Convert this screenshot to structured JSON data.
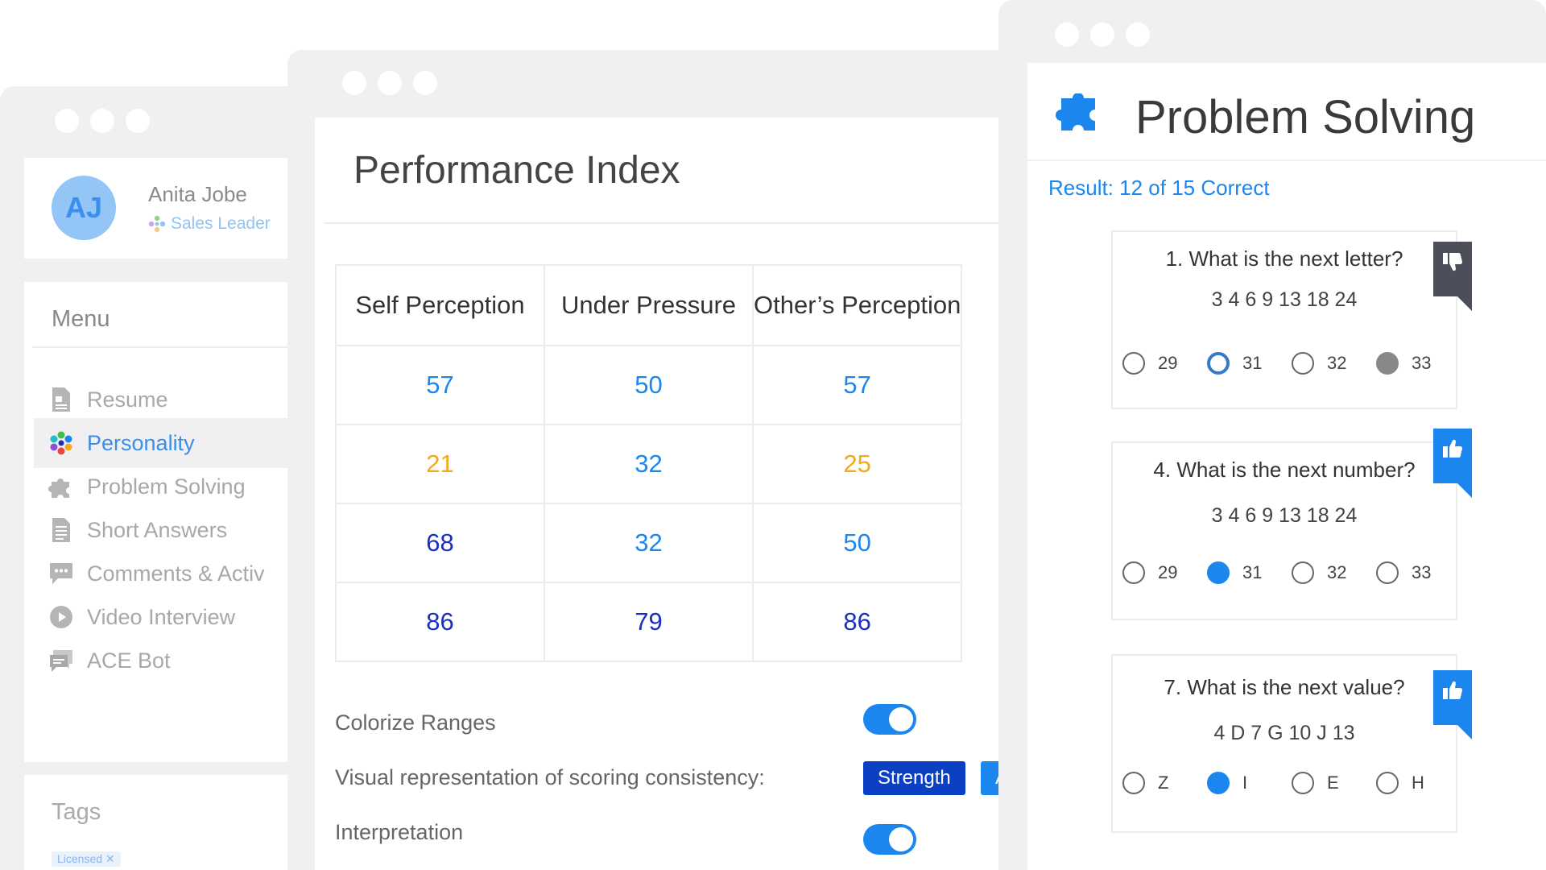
{
  "sidebar": {
    "profile": {
      "initials": "AJ",
      "name": "Anita Jobe",
      "role": "Sales Leader"
    },
    "menu": {
      "title": "Menu",
      "items": [
        {
          "label": "Resume",
          "icon": "document-icon"
        },
        {
          "label": "Personality",
          "icon": "flower-icon",
          "active": true
        },
        {
          "label": "Problem Solving",
          "icon": "puzzle-icon"
        },
        {
          "label": "Short Answers",
          "icon": "text-lines-icon"
        },
        {
          "label": "Comments & Activ",
          "icon": "chat-icon"
        },
        {
          "label": "Video Interview",
          "icon": "play-icon"
        },
        {
          "label": "ACE Bot",
          "icon": "bot-chat-icon"
        }
      ]
    },
    "tags": {
      "title": "Tags",
      "chip": "Licensed"
    }
  },
  "performance": {
    "title": "Performance Index",
    "headers": [
      "Self Perception",
      "Under Pressure",
      "Other’s Perception"
    ],
    "rows": [
      [
        {
          "v": "57",
          "c": "#1a86ee"
        },
        {
          "v": "50",
          "c": "#1a86ee"
        },
        {
          "v": "57",
          "c": "#1a86ee"
        }
      ],
      [
        {
          "v": "21",
          "c": "#f5a81c"
        },
        {
          "v": "32",
          "c": "#1a86ee"
        },
        {
          "v": "25",
          "c": "#f5a81c"
        }
      ],
      [
        {
          "v": "68",
          "c": "#1a2fbf"
        },
        {
          "v": "32",
          "c": "#1a86ee"
        },
        {
          "v": "50",
          "c": "#1a86ee"
        }
      ],
      [
        {
          "v": "86",
          "c": "#1a2fbf"
        },
        {
          "v": "79",
          "c": "#1a2fbf"
        },
        {
          "v": "86",
          "c": "#1a2fbf"
        }
      ]
    ],
    "colorize_label": "Colorize Ranges",
    "visual_label": "Visual representation of scoring consistency:",
    "chip_strength": "Strength",
    "chip_area": "Are",
    "interpretation_label": "Interpretation"
  },
  "problem_solving": {
    "title": "Problem Solving",
    "result": "Result: 12 of 15 Correct",
    "questions": [
      {
        "text": "1. What is the next letter?",
        "sequence": "3 4 6 9 13 18 24",
        "options": [
          "29",
          "31",
          "32",
          "33"
        ],
        "feedback": "thumbs-down-icon"
      },
      {
        "text": "4. What is the next number?",
        "sequence": "3 4 6 9 13 18 24",
        "options": [
          "29",
          "31",
          "32",
          "33"
        ],
        "feedback": "thumbs-up-icon"
      },
      {
        "text": "7. What is the next value?",
        "sequence": "4 D 7 G 10 J 13",
        "options": [
          "Z",
          "I",
          "E",
          "H"
        ],
        "feedback": "thumbs-up-icon"
      }
    ]
  },
  "colors": {
    "accent": "#1a86ee",
    "dark_blue": "#1a2fbf",
    "orange": "#f5a81c",
    "chip_dark": "#0b3fc4"
  }
}
